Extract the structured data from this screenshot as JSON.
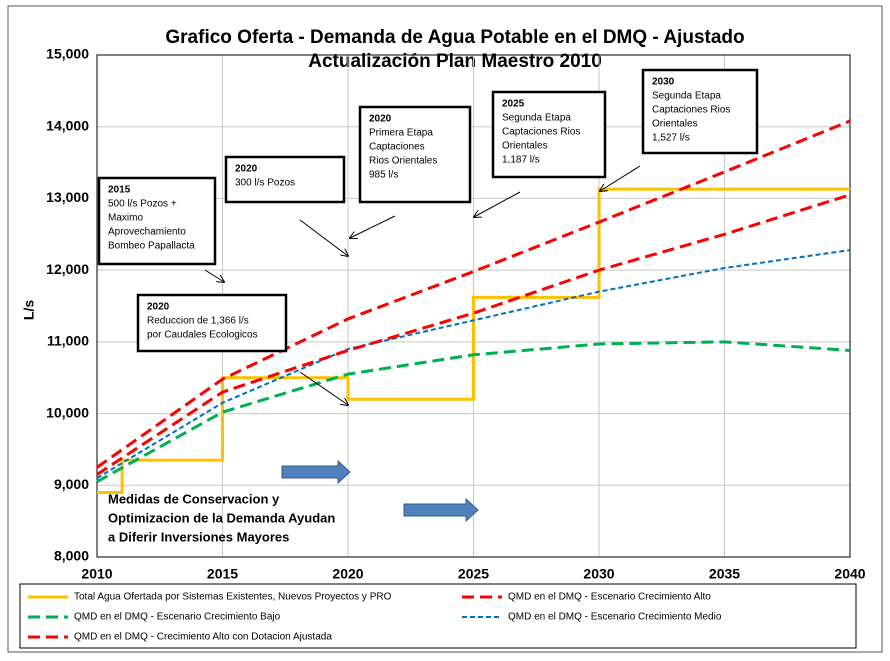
{
  "chart_data": {
    "type": "line",
    "title": [
      "Grafico Oferta - Demanda  de Agua Potable en el DMQ - Ajustado",
      "Actualización Plan Maestro 2010"
    ],
    "ylabel": "L/s",
    "x": [
      2010,
      2015,
      2020,
      2025,
      2030,
      2035,
      2040
    ],
    "xlim": [
      2010,
      2040
    ],
    "xticks": [
      2010,
      2015,
      2020,
      2025,
      2030,
      2035,
      2040
    ],
    "ylim": [
      8000,
      15000
    ],
    "yticks": [
      {
        "value": 8000,
        "label": "8,000"
      },
      {
        "value": 9000,
        "label": "9,000"
      },
      {
        "value": 10000,
        "label": "10,000"
      },
      {
        "value": 11000,
        "label": "11,000"
      },
      {
        "value": 12000,
        "label": "12,000"
      },
      {
        "value": 13000,
        "label": "13,000"
      },
      {
        "value": 14000,
        "label": "14,000"
      },
      {
        "value": 15000,
        "label": "15,000"
      }
    ],
    "grid": true,
    "series": [
      {
        "name": "Total  Agua  Ofertada por Sistemas Existentes, Nuevos Proyectos y PRO",
        "color": "#ffc000",
        "style": "solid",
        "x": [
          2010,
          2011,
          2011,
          2015,
          2015,
          2020,
          2020,
          2025,
          2025,
          2030,
          2030,
          2040
        ],
        "values": [
          8900,
          8900,
          9350,
          9350,
          10500,
          10500,
          10200,
          10200,
          11620,
          11620,
          13130,
          13130
        ]
      },
      {
        "name": "QMD en el DMQ - Escenario Crecimiento Alto",
        "color": "#ff0000",
        "style": "dashed",
        "values": [
          9250,
          10480,
          11320,
          11980,
          12670,
          13370,
          14080
        ]
      },
      {
        "name": "QMD en el DMQ - Escenario Crecimiento Bajo",
        "color": "#00b050",
        "style": "dashed",
        "values": [
          9050,
          10020,
          10550,
          10820,
          10970,
          11000,
          10880
        ]
      },
      {
        "name": "QMD en el DMQ - Escenario Crecimiento Medio",
        "color": "#0070c0",
        "style": "dotted",
        "values": [
          9100,
          10150,
          10900,
          11300,
          11700,
          12030,
          12280
        ]
      },
      {
        "name": "QMD en el DMQ - Crecimiento Alto con Dotacion Ajustada",
        "color": "#ff0000",
        "style": "dashed",
        "values": [
          9150,
          10300,
          10880,
          11400,
          12000,
          12500,
          13050
        ]
      }
    ],
    "annotations": [
      {
        "lines": [
          "2015",
          "500 l/s Pozos +",
          "Maximo",
          "Aprovechamiento",
          "Bombeo Papallacta"
        ]
      },
      {
        "lines": [
          "2020",
          "300 l/s Pozos"
        ]
      },
      {
        "lines": [
          "2020",
          "Primera Etapa",
          "Captaciones",
          "Rios Orientales",
          "985  l/s"
        ]
      },
      {
        "lines": [
          "2025",
          "Segunda Etapa",
          "Captaciones Rios",
          "Orientales",
          "1,187  l/s"
        ]
      },
      {
        "lines": [
          "2030",
          "Segunda Etapa",
          "Captaciones Rios",
          "Orientales",
          "1,527  l/s"
        ]
      },
      {
        "lines": [
          "2020",
          "Reduccion de 1,366 l/s",
          "por Caudales Ecologicos"
        ]
      }
    ],
    "note": [
      "Medidas de Conservacion y",
      "Optimizacion de la Demanda Ayudan",
      "a Diferir Inversiones Mayores"
    ]
  }
}
